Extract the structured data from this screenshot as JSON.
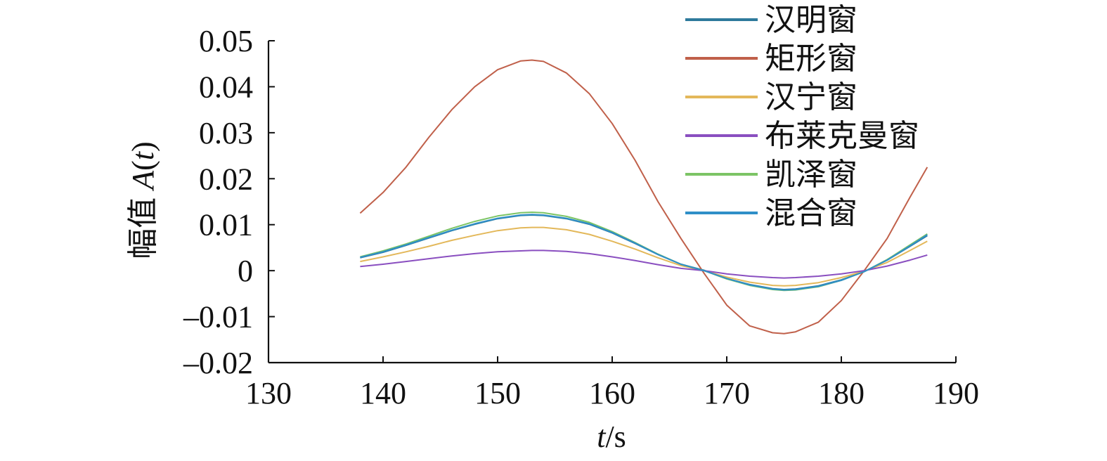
{
  "chart_data": {
    "type": "line",
    "xlabel_italic": "t",
    "xlabel_unit": "/s",
    "ylabel_text": "幅值 ",
    "ylabel_italic": "A",
    "ylabel_paren_open": "(",
    "ylabel_paren_var": "t",
    "ylabel_paren_close": ")",
    "xlim": [
      130,
      190
    ],
    "ylim": [
      -0.02,
      0.05
    ],
    "xticks": [
      130,
      140,
      150,
      160,
      170,
      180,
      190
    ],
    "xtick_labels": [
      "130",
      "140",
      "150",
      "160",
      "170",
      "180",
      "190"
    ],
    "yticks": [
      0.05,
      0.04,
      0.03,
      0.02,
      0.01,
      0,
      -0.01,
      -0.02
    ],
    "ytick_labels": [
      "0.05",
      "0.04",
      "0.03",
      "0.02",
      "0.01",
      "0",
      "–0.01",
      "–0.02"
    ],
    "grid": false,
    "legend_position": "top-right",
    "x": [
      138,
      140,
      142,
      144,
      146,
      148,
      150,
      152,
      153,
      154,
      156,
      158,
      160,
      162,
      164,
      166,
      168,
      170,
      172,
      174,
      175,
      176,
      178,
      180,
      182,
      184,
      186,
      187.5
    ],
    "series": [
      {
        "name": "汉明窗",
        "color": "#2e7a9c",
        "values": [
          0.0028,
          0.004,
          0.0055,
          0.0071,
          0.0087,
          0.0101,
          0.0113,
          0.012,
          0.0121,
          0.012,
          0.0113,
          0.0101,
          0.0082,
          0.0059,
          0.0035,
          0.0014,
          0.0001,
          -0.0017,
          -0.003,
          -0.0039,
          -0.0041,
          -0.004,
          -0.0033,
          -0.002,
          -0.0002,
          0.0023,
          0.0053,
          0.0076
        ]
      },
      {
        "name": "矩形窗",
        "color": "#c0604a",
        "values": [
          0.0125,
          0.017,
          0.0225,
          0.029,
          0.035,
          0.04,
          0.0437,
          0.0456,
          0.0458,
          0.0455,
          0.043,
          0.0385,
          0.032,
          0.024,
          0.015,
          0.007,
          -0.0005,
          -0.0075,
          -0.012,
          -0.0135,
          -0.0137,
          -0.0133,
          -0.0112,
          -0.0065,
          0.0,
          0.007,
          0.016,
          0.0225
        ]
      },
      {
        "name": "汉宁窗",
        "color": "#e3b85a",
        "values": [
          0.002,
          0.003,
          0.0041,
          0.0053,
          0.0066,
          0.0077,
          0.0087,
          0.0093,
          0.0094,
          0.0094,
          0.0089,
          0.0079,
          0.0064,
          0.0047,
          0.0028,
          0.0011,
          0.0,
          -0.0014,
          -0.0025,
          -0.0032,
          -0.0033,
          -0.0032,
          -0.0026,
          -0.0015,
          -0.0001,
          0.0018,
          0.0044,
          0.0064
        ]
      },
      {
        "name": "布莱克曼窗",
        "color": "#8a4fc0",
        "values": [
          0.0009,
          0.0014,
          0.002,
          0.0026,
          0.0032,
          0.0037,
          0.0041,
          0.0043,
          0.0044,
          0.0044,
          0.0042,
          0.0037,
          0.003,
          0.0022,
          0.0013,
          0.0005,
          0.0,
          -0.0007,
          -0.0012,
          -0.0015,
          -0.0016,
          -0.0015,
          -0.0012,
          -0.0007,
          0.0,
          0.001,
          0.0023,
          0.0034
        ]
      },
      {
        "name": "凯泽窗",
        "color": "#7cc465",
        "values": [
          0.003,
          0.0043,
          0.0058,
          0.0075,
          0.0092,
          0.0107,
          0.0119,
          0.0126,
          0.0127,
          0.0126,
          0.0118,
          0.0105,
          0.0085,
          0.0061,
          0.0036,
          0.0014,
          0.0,
          -0.0018,
          -0.0032,
          -0.0041,
          -0.0043,
          -0.0042,
          -0.0035,
          -0.0021,
          -0.0002,
          0.0024,
          0.0056,
          0.008
        ]
      },
      {
        "name": "混合窗",
        "color": "#2f8fc8",
        "values": [
          0.0029,
          0.0041,
          0.0056,
          0.0072,
          0.0088,
          0.0102,
          0.0114,
          0.0121,
          0.0122,
          0.0121,
          0.0114,
          0.0102,
          0.0083,
          0.006,
          0.0035,
          0.0014,
          0.0,
          -0.0017,
          -0.0031,
          -0.004,
          -0.0042,
          -0.0041,
          -0.0034,
          -0.0021,
          -0.0002,
          0.0023,
          0.0054,
          0.0078
        ]
      }
    ]
  }
}
